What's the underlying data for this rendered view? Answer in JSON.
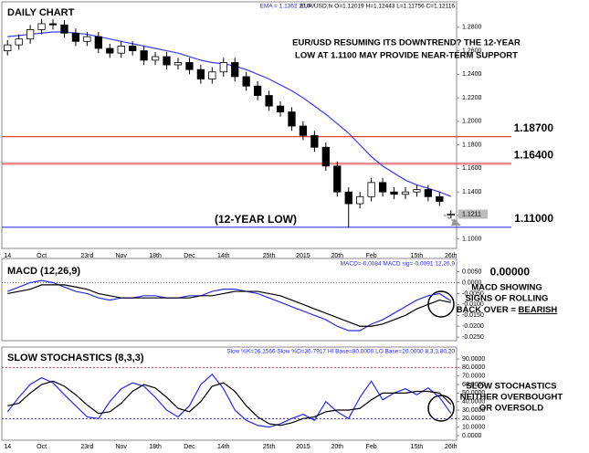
{
  "chart_data": [
    {
      "type": "candlestick",
      "title": "DAILY CHART",
      "header": [
        "EMA = 1.1362  20,0",
        "EUR/USD.fx O=1.12019 H=1.12443 L=1.11756 C=1.12116"
      ],
      "annotation": [
        "EUR/USD RESUMING ITS DOWNTREND? THE 12-YEAR",
        "LOW AT 1.1100 MAY PROVIDE NEAR-TERM SUPPORT"
      ],
      "categories": [
        "14",
        null,
        null,
        "Oct",
        null,
        null,
        null,
        "23rd",
        null,
        null,
        "Nov",
        null,
        null,
        "18th",
        null,
        null,
        "Dec",
        null,
        null,
        "14th",
        null,
        null,
        null,
        "25th",
        null,
        null,
        "2015",
        null,
        null,
        "20th",
        null,
        null,
        "Feb",
        null,
        null,
        null,
        "15th",
        null,
        null,
        "26th"
      ],
      "open": [
        1.26,
        1.265,
        1.27,
        1.278,
        1.283,
        1.282,
        1.275,
        1.268,
        1.272,
        1.262,
        1.258,
        1.264,
        1.26,
        1.252,
        1.255,
        1.248,
        1.25,
        1.244,
        1.236,
        1.242,
        1.25,
        1.238,
        1.23,
        1.222,
        1.213,
        1.208,
        1.196,
        1.188,
        1.178,
        1.162,
        1.14,
        1.13,
        1.136,
        1.148,
        1.14,
        1.138,
        1.14,
        1.142,
        1.136,
        1.12019
      ],
      "high": [
        1.269,
        1.274,
        1.282,
        1.287,
        1.287,
        1.286,
        1.279,
        1.276,
        1.276,
        1.266,
        1.268,
        1.268,
        1.264,
        1.259,
        1.259,
        1.254,
        1.254,
        1.248,
        1.246,
        1.254,
        1.254,
        1.242,
        1.234,
        1.226,
        1.217,
        1.212,
        1.2,
        1.192,
        1.182,
        1.166,
        1.144,
        1.14,
        1.152,
        1.152,
        1.144,
        1.144,
        1.146,
        1.146,
        1.14,
        1.12443
      ],
      "low": [
        1.256,
        1.261,
        1.266,
        1.274,
        1.278,
        1.271,
        1.264,
        1.264,
        1.258,
        1.254,
        1.254,
        1.256,
        1.248,
        1.248,
        1.244,
        1.244,
        1.24,
        1.232,
        1.232,
        1.238,
        1.234,
        1.226,
        1.218,
        1.209,
        1.204,
        1.192,
        1.184,
        1.174,
        1.158,
        1.136,
        1.1098,
        1.126,
        1.132,
        1.136,
        1.134,
        1.134,
        1.136,
        1.132,
        1.128,
        1.11756
      ],
      "close": [
        1.265,
        1.27,
        1.278,
        1.283,
        1.282,
        1.275,
        1.268,
        1.272,
        1.262,
        1.258,
        1.264,
        1.26,
        1.252,
        1.255,
        1.248,
        1.25,
        1.244,
        1.236,
        1.242,
        1.25,
        1.238,
        1.23,
        1.222,
        1.213,
        1.208,
        1.196,
        1.188,
        1.178,
        1.162,
        1.14,
        1.13,
        1.136,
        1.148,
        1.14,
        1.138,
        1.14,
        1.142,
        1.136,
        1.132,
        1.12116
      ],
      "ema": {
        "color": "#3a3aff",
        "values": [
          1.272,
          1.273,
          1.274,
          1.275,
          1.276,
          1.276,
          1.275,
          1.274,
          1.272,
          1.27,
          1.268,
          1.266,
          1.264,
          1.262,
          1.26,
          1.258,
          1.255,
          1.252,
          1.25,
          1.249,
          1.247,
          1.244,
          1.24,
          1.236,
          1.231,
          1.226,
          1.22,
          1.213,
          1.206,
          1.198,
          1.19,
          1.18,
          1.17,
          1.162,
          1.156,
          1.15,
          1.146,
          1.143,
          1.14,
          1.1362
        ]
      },
      "levels": [
        {
          "value": 1.187,
          "label": "1.18700",
          "color": "#e84040"
        },
        {
          "value": 1.164,
          "label": "1.16400",
          "color": "#e84040"
        },
        {
          "value": 1.11,
          "label": "1.11000",
          "note": "(12-YEAR LOW)",
          "color": "#3333dd"
        }
      ],
      "last_price": 1.1211,
      "ylim": [
        1.092,
        1.3016
      ],
      "yticks": [
        {
          "value": 1.1,
          "label": "1.1000"
        },
        {
          "value": 1.12,
          "label": "1.1200"
        },
        {
          "value": 1.14,
          "label": "1.1400"
        },
        {
          "value": 1.16,
          "label": "1.1600"
        },
        {
          "value": 1.18,
          "label": "1.1800"
        },
        {
          "value": 1.2,
          "label": "1.2000"
        },
        {
          "value": 1.22,
          "label": "1.2200"
        },
        {
          "value": 1.24,
          "label": "1.2400"
        },
        {
          "value": 1.26,
          "label": "1.2600"
        },
        {
          "value": 1.28,
          "label": "1.2800"
        }
      ]
    },
    {
      "type": "line",
      "title": "MACD (12,26,9)",
      "header": [
        "MACD=-0.0084  MACD sig=-0.0091  12,26,9"
      ],
      "zero_label": {
        "value": 0,
        "label": "0.00000"
      },
      "annotation": [
        "MACD SHOWING",
        "SIGNS OF ROLLING",
        "BACK OVER = "
      ],
      "annotation_emphasis": "BEARISH",
      "series": [
        {
          "color": "#2a2aee",
          "values": [
            -0.004,
            -0.002,
            0.0,
            0.001,
            0.0,
            -0.002,
            -0.004,
            -0.005,
            -0.007,
            -0.008,
            -0.007,
            -0.007,
            -0.006,
            -0.006,
            -0.007,
            -0.007,
            -0.006,
            -0.006,
            -0.004,
            -0.003,
            -0.003,
            -0.004,
            -0.005,
            -0.007,
            -0.009,
            -0.011,
            -0.013,
            -0.015,
            -0.017,
            -0.02,
            -0.022,
            -0.022,
            -0.019,
            -0.017,
            -0.014,
            -0.011,
            -0.008,
            -0.006,
            -0.005,
            -0.0084
          ]
        },
        {
          "color": "#000000",
          "values": [
            -0.005,
            -0.004,
            -0.003,
            -0.001,
            -0.001,
            -0.001,
            -0.002,
            -0.003,
            -0.005,
            -0.006,
            -0.007,
            -0.007,
            -0.007,
            -0.007,
            -0.007,
            -0.007,
            -0.007,
            -0.006,
            -0.006,
            -0.005,
            -0.004,
            -0.004,
            -0.004,
            -0.005,
            -0.006,
            -0.008,
            -0.01,
            -0.012,
            -0.014,
            -0.016,
            -0.018,
            -0.02,
            -0.02,
            -0.019,
            -0.017,
            -0.015,
            -0.012,
            -0.01,
            -0.008,
            -0.0091
          ]
        }
      ],
      "ylim": [
        -0.0266,
        0.0111
      ],
      "yticks": [
        {
          "value": 0.005,
          "label": "0.0050"
        },
        {
          "value": 0,
          "label": "0.0000"
        },
        {
          "value": -0.005,
          "label": "-0.0050"
        },
        {
          "value": -0.01,
          "label": "-0.0100"
        },
        {
          "value": -0.015,
          "label": "-0.0150"
        },
        {
          "value": -0.02,
          "label": "-0.0200"
        },
        {
          "value": -0.025,
          "label": "-0.0250"
        }
      ]
    },
    {
      "type": "line",
      "title": "SLOW STOCHASTICS (8,3,3)",
      "header": [
        "Slow %K=26.1566  Slow %D=36.7917  HI Base=80.0000  LO Base=20.0000  8,3,3,80,20"
      ],
      "annotation": [
        "SLOW STOCHASTICS",
        "NEITHER OVERBOUGHT",
        "OR OVERSOLD"
      ],
      "levels": [
        {
          "value": 80,
          "color": "#e84040"
        },
        {
          "value": 20,
          "color": "#3333dd"
        }
      ],
      "series": [
        {
          "color": "#2a2aee",
          "values": [
            28,
            45,
            60,
            68,
            62,
            48,
            35,
            22,
            20,
            40,
            55,
            62,
            58,
            45,
            30,
            22,
            35,
            60,
            72,
            55,
            30,
            18,
            12,
            10,
            14,
            20,
            25,
            18,
            40,
            28,
            20,
            45,
            64,
            42,
            50,
            55,
            48,
            56,
            45,
            26.1566
          ]
        },
        {
          "color": "#000000",
          "values": [
            35,
            38,
            50,
            60,
            64,
            58,
            48,
            36,
            26,
            28,
            38,
            52,
            60,
            56,
            45,
            32,
            28,
            40,
            58,
            62,
            52,
            35,
            22,
            14,
            12,
            15,
            20,
            22,
            28,
            30,
            30,
            32,
            42,
            50,
            50,
            50,
            52,
            52,
            50,
            36.7917
          ]
        }
      ],
      "ylim": [
        -5.4,
        104
      ],
      "yticks": [
        {
          "value": 0,
          "label": "0.0000"
        },
        {
          "value": 10,
          "label": "10.0000"
        },
        {
          "value": 20,
          "label": "20.0000"
        },
        {
          "value": 30,
          "label": "30.0000"
        },
        {
          "value": 40,
          "label": "40.0000"
        },
        {
          "value": 50,
          "label": "50.0000"
        },
        {
          "value": 60,
          "label": "60.0000"
        },
        {
          "value": 70,
          "label": "70.0000"
        },
        {
          "value": 80,
          "label": "80.0000"
        },
        {
          "value": 90,
          "label": "90.0000"
        }
      ]
    }
  ]
}
